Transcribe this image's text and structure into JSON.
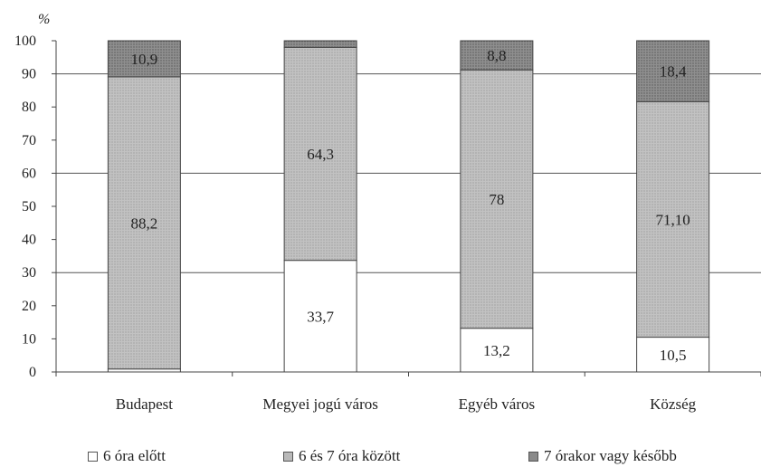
{
  "chart_data": {
    "type": "bar",
    "stacked": true,
    "unit_label": "%",
    "ylim": [
      0,
      100
    ],
    "yticks": [
      "0",
      "10",
      "20",
      "30",
      "40",
      "50",
      "60",
      "70",
      "80",
      "90",
      "100"
    ],
    "categories": [
      "Budapest",
      "Megyei jogú város",
      "Egyéb város",
      "Község"
    ],
    "series": [
      {
        "name": "6 óra előtt",
        "color": "#ffffff",
        "values": [
          0.9,
          33.7,
          13.2,
          10.5
        ],
        "labels": [
          "",
          "33,7",
          "13,2",
          "10,5"
        ]
      },
      {
        "name": "6 és 7 óra között",
        "color": "#b9b9b9",
        "values": [
          88.2,
          64.3,
          78,
          71.1
        ],
        "labels": [
          "88,2",
          "64,3",
          "78",
          "71,10"
        ]
      },
      {
        "name": "7 órakor vagy később",
        "color": "#8a8a8a",
        "values": [
          10.9,
          2.0,
          8.8,
          18.4
        ],
        "labels": [
          "10,9",
          "",
          "8,8",
          "18,4"
        ]
      }
    ],
    "gridlines": [
      30,
      60,
      90
    ],
    "legend_position": "bottom"
  }
}
